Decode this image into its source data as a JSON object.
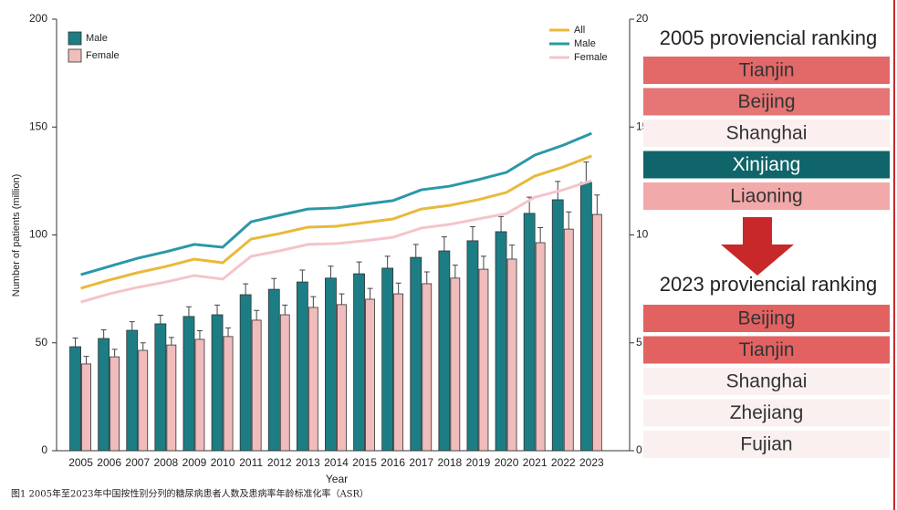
{
  "chart_data": {
    "type": "bar",
    "y_label": "Number of patients (million)",
    "x_label": "Year",
    "caption": "图1 2005年至2023年中国按性别分列的糖尿病患者人数及患病率年龄标准化率（ASR）",
    "categories": [
      "2005",
      "2006",
      "2007",
      "2008",
      "2009",
      "2010",
      "2011",
      "2012",
      "2013",
      "2014",
      "2015",
      "2016",
      "2017",
      "2018",
      "2019",
      "2020",
      "2021",
      "2022",
      "2023"
    ],
    "ylim": [
      0,
      200
    ],
    "yticks": [
      0,
      50,
      100,
      150,
      200
    ],
    "y2lim": [
      0,
      20
    ],
    "y2ticks": [
      0,
      5,
      10,
      15,
      20
    ],
    "bar_legend": "upper left",
    "line_legend": "upper right",
    "series": [
      {
        "name": "Male",
        "type": "bar",
        "color": "#1d7d84",
        "values": [
          48.2,
          52,
          55.8,
          58.8,
          62.2,
          63,
          72.3,
          74.8,
          78.2,
          80,
          82,
          84.6,
          89.6,
          92.6,
          97.3,
          101.5,
          110,
          116.3,
          124.3
        ],
        "errors": [
          4,
          4,
          4,
          4,
          4.5,
          4.5,
          5,
          5,
          5.5,
          5.5,
          5.5,
          5.5,
          6,
          6.5,
          6.5,
          7,
          7.5,
          8.5,
          9.5
        ]
      },
      {
        "name": "Female",
        "type": "bar",
        "color": "#f1bcbc",
        "values": [
          40.2,
          43.5,
          46.5,
          49,
          51.6,
          52.9,
          60.5,
          63,
          66.4,
          67.7,
          70.2,
          72.7,
          77.4,
          80,
          84.1,
          88.8,
          96.4,
          102.7,
          109.5
        ],
        "errors": [
          3.5,
          3.5,
          3.5,
          3.5,
          4,
          4,
          4.5,
          4.5,
          5,
          5,
          5,
          5,
          5.5,
          6,
          6,
          6.5,
          7,
          8,
          9
        ]
      },
      {
        "name": "All",
        "type": "line",
        "axis": "y2",
        "color": "#e8b93a",
        "values": [
          7.53,
          7.91,
          8.25,
          8.54,
          8.88,
          8.71,
          9.81,
          10.06,
          10.36,
          10.4,
          10.57,
          10.74,
          11.2,
          11.37,
          11.63,
          11.97,
          12.73,
          13.15,
          13.66
        ]
      },
      {
        "name": "Male",
        "type": "line",
        "axis": "y2",
        "color": "#2a98a8",
        "values": [
          8.16,
          8.54,
          8.92,
          9.22,
          9.56,
          9.43,
          10.61,
          10.91,
          11.2,
          11.25,
          11.42,
          11.59,
          12.09,
          12.26,
          12.56,
          12.9,
          13.7,
          14.16,
          14.71
        ]
      },
      {
        "name": "Female",
        "type": "line",
        "axis": "y2",
        "color": "#f4c4ca",
        "values": [
          6.89,
          7.27,
          7.57,
          7.82,
          8.12,
          7.95,
          9.01,
          9.26,
          9.56,
          9.6,
          9.73,
          9.89,
          10.32,
          10.49,
          10.74,
          10.99,
          11.75,
          12.09,
          12.52
        ]
      }
    ]
  },
  "rankings": [
    {
      "title": "2005 proviencial ranking",
      "items": [
        {
          "name": "Tianjin",
          "color": "#e36868"
        },
        {
          "name": "Beijing",
          "color": "#e67575"
        },
        {
          "name": "Shanghai",
          "color": "#fbefef"
        },
        {
          "name": "Xinjiang",
          "color": "#0f656a"
        },
        {
          "name": "Liaoning",
          "color": "#f2a9a9"
        }
      ]
    },
    {
      "title": "2023 proviencial ranking",
      "items": [
        {
          "name": "Beijing",
          "color": "#e26262"
        },
        {
          "name": "Tianjin",
          "color": "#e26262"
        },
        {
          "name": "Shanghai",
          "color": "#fbf0f0"
        },
        {
          "name": "Zhejiang",
          "color": "#fbf0f0"
        },
        {
          "name": "Fujian",
          "color": "#fbf0f0"
        }
      ]
    }
  ]
}
